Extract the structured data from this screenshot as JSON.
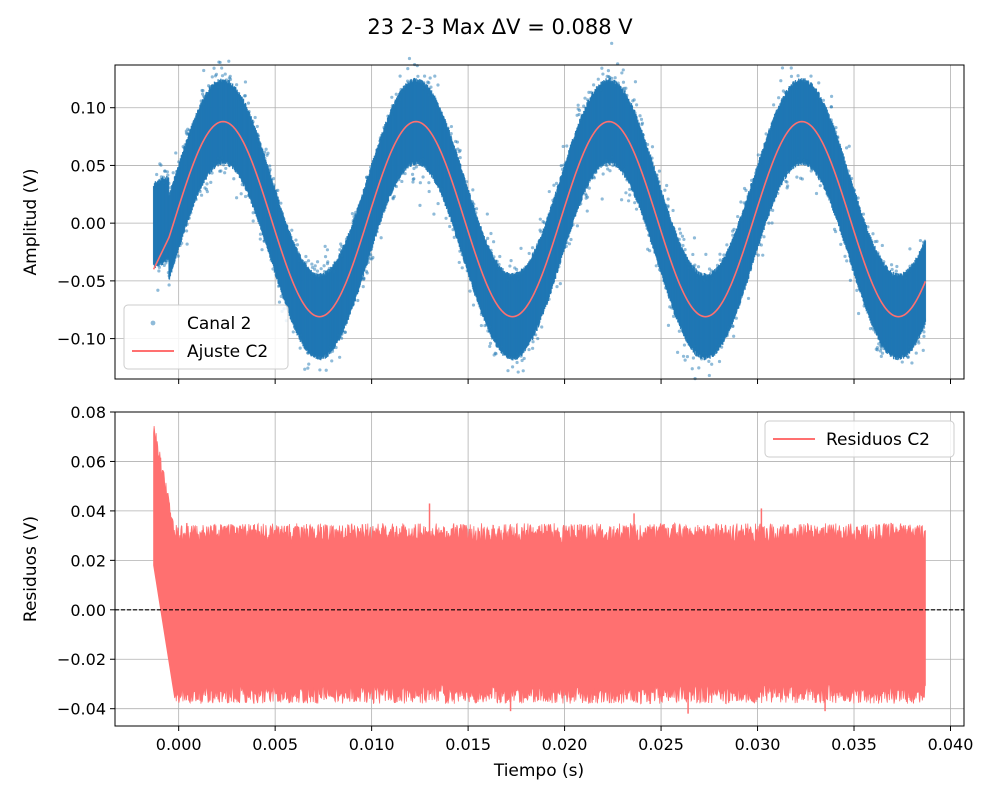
{
  "figure_title": "23 2-3 Max ΔV = 0.088 V",
  "chart_data": [
    {
      "type": "scatter",
      "ylabel": "Amplitud (V)",
      "xlim": [
        -0.0033,
        0.0407
      ],
      "ylim": [
        -0.135,
        0.137
      ],
      "xticks": [
        0.0,
        0.005,
        0.01,
        0.015,
        0.02,
        0.025,
        0.03,
        0.035,
        0.04
      ],
      "yticks": [
        -0.1,
        -0.05,
        0.0,
        0.05,
        0.1
      ],
      "ytick_labels": [
        "−0.10",
        "−0.05",
        "0.00",
        "0.05",
        "0.10"
      ],
      "grid": true,
      "legend_position": "lower-left",
      "series": [
        {
          "name": "Canal 2",
          "kind": "scatter",
          "color": "#1f77b4",
          "x_range": [
            -0.0013,
            0.0387
          ],
          "envelope": {
            "x": [
              -0.0013,
              0.0023,
              0.0073,
              0.0123,
              0.0173,
              0.0223,
              0.0273,
              0.0323,
              0.0373,
              0.0387
            ],
            "y_max": [
              0.037,
              0.127,
              -0.05,
              0.127,
              -0.05,
              0.125,
              -0.05,
              0.128,
              -0.058,
              -0.055
            ],
            "y_min": [
              -0.04,
              0.045,
              -0.123,
              0.045,
              -0.123,
              0.045,
              -0.117,
              0.045,
              -0.117,
              -0.09
            ]
          },
          "note": "noisy samples around fitted sinusoid (band ~±0.035 V)"
        },
        {
          "name": "Ajuste C2",
          "kind": "line",
          "color": "#ff7070",
          "model": {
            "amplitude": 0.0845,
            "offset": 0.0035,
            "frequency_hz": 100,
            "peak_time": 0.0023
          },
          "x_range": [
            -0.0013,
            0.0387
          ]
        }
      ]
    },
    {
      "type": "line",
      "xlabel": "Tiempo (s)",
      "ylabel": "Residuos (V)",
      "xlim": [
        -0.0033,
        0.0407
      ],
      "ylim": [
        -0.047,
        0.08
      ],
      "xticks": [
        0.0,
        0.005,
        0.01,
        0.015,
        0.02,
        0.025,
        0.03,
        0.035,
        0.04
      ],
      "xtick_labels": [
        "0.000",
        "0.005",
        "0.010",
        "0.015",
        "0.020",
        "0.025",
        "0.030",
        "0.035",
        "0.040"
      ],
      "yticks": [
        -0.04,
        -0.02,
        0.0,
        0.02,
        0.04,
        0.06,
        0.08
      ],
      "ytick_labels": [
        "−0.04",
        "−0.02",
        "0.00",
        "0.02",
        "0.04",
        "0.06",
        "0.08"
      ],
      "grid": true,
      "legend_position": "top-right",
      "reference_line": {
        "y": 0.0,
        "style": "dashed",
        "color": "#000000"
      },
      "series": [
        {
          "name": "Residuos C2",
          "kind": "line",
          "color": "#ff7070",
          "x_range": [
            -0.0013,
            0.0387
          ],
          "typical_band": [
            -0.034,
            0.031
          ],
          "initial_transient": {
            "x": [
              -0.0013,
              -0.0011,
              -0.0008,
              -0.0005,
              -0.0002
            ],
            "y_max": [
              0.074,
              0.07,
              0.045,
              0.035,
              0.03
            ],
            "y_min": [
              0.018,
              0.002,
              -0.01,
              -0.025,
              -0.036
            ]
          },
          "peak_spikes": [
            {
              "x": 0.013,
              "y": 0.043
            },
            {
              "x": 0.0302,
              "y": 0.041
            },
            {
              "x": 0.0236,
              "y": 0.039
            },
            {
              "x": 0.0264,
              "y": -0.042
            },
            {
              "x": 0.0172,
              "y": -0.041
            },
            {
              "x": 0.0335,
              "y": -0.041
            }
          ]
        }
      ]
    }
  ]
}
